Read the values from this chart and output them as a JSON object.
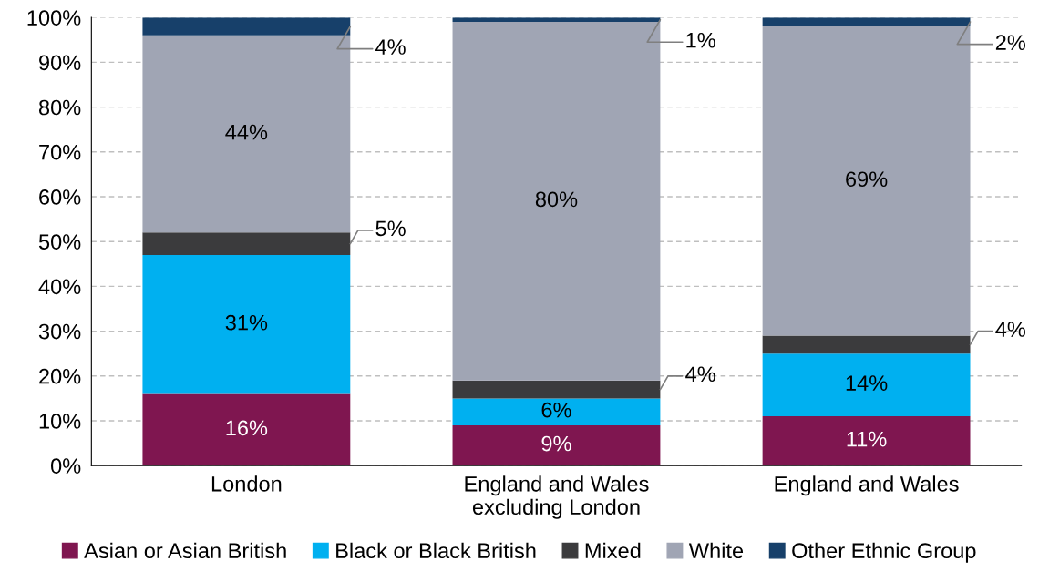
{
  "chart_data": {
    "type": "bar",
    "stacked": true,
    "categories": [
      "London",
      "England and Wales\nexcluding London",
      "England and Wales"
    ],
    "series": [
      {
        "name": "Asian or Asian British",
        "color": "#7f1650",
        "values": [
          16,
          9,
          11
        ],
        "value_labels": [
          "16%",
          "9%",
          "11%"
        ]
      },
      {
        "name": "Black or Black British",
        "color": "#00b0f0",
        "values": [
          31,
          6,
          14
        ],
        "value_labels": [
          "31%",
          "6%",
          "14%"
        ]
      },
      {
        "name": "Mixed",
        "color": "#3b3b3d",
        "values": [
          5,
          4,
          4
        ],
        "value_labels": [
          "5%",
          "4%",
          "4%"
        ]
      },
      {
        "name": "White",
        "color": "#a0a5b4",
        "values": [
          44,
          80,
          69
        ],
        "value_labels": [
          "44%",
          "80%",
          "69%"
        ]
      },
      {
        "name": "Other Ethnic Group",
        "color": "#17406a",
        "values": [
          4,
          1,
          2
        ],
        "value_labels": [
          "4%",
          "1%",
          "2%"
        ]
      }
    ],
    "ylim": [
      0,
      100
    ],
    "yticks": [
      {
        "value": 0,
        "label": "0%"
      },
      {
        "value": 10,
        "label": "10%"
      },
      {
        "value": 20,
        "label": "20%"
      },
      {
        "value": 30,
        "label": "30%"
      },
      {
        "value": 40,
        "label": "40%"
      },
      {
        "value": 50,
        "label": "50%"
      },
      {
        "value": 60,
        "label": "60%"
      },
      {
        "value": 70,
        "label": "70%"
      },
      {
        "value": 80,
        "label": "80%"
      },
      {
        "value": 90,
        "label": "90%"
      },
      {
        "value": 100,
        "label": "100%"
      }
    ],
    "grid": "y",
    "legend": "bottom"
  }
}
